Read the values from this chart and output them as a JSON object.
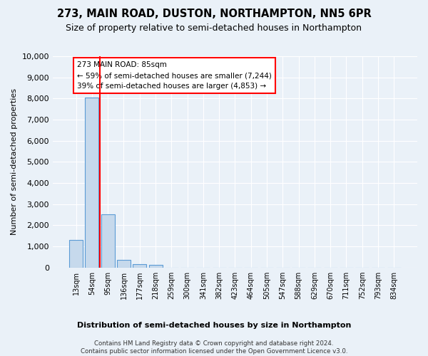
{
  "title": "273, MAIN ROAD, DUSTON, NORTHAMPTON, NN5 6PR",
  "subtitle": "Size of property relative to semi-detached houses in Northampton",
  "xlabel": "Distribution of semi-detached houses by size in Northampton",
  "ylabel": "Number of semi-detached properties",
  "footer": "Contains HM Land Registry data © Crown copyright and database right 2024.\nContains public sector information licensed under the Open Government Licence v3.0.",
  "categories": [
    "13sqm",
    "54sqm",
    "95sqm",
    "136sqm",
    "177sqm",
    "218sqm",
    "259sqm",
    "300sqm",
    "341sqm",
    "382sqm",
    "423sqm",
    "464sqm",
    "505sqm",
    "547sqm",
    "588sqm",
    "629sqm",
    "670sqm",
    "711sqm",
    "752sqm",
    "793sqm",
    "834sqm"
  ],
  "values": [
    1300,
    8050,
    2500,
    370,
    155,
    120,
    0,
    0,
    0,
    0,
    0,
    0,
    0,
    0,
    0,
    0,
    0,
    0,
    0,
    0,
    0
  ],
  "bar_color": "#c6d9ec",
  "bar_edge_color": "#5b9bd5",
  "subject_line_color": "red",
  "annotation_text": "273 MAIN ROAD: 85sqm\n← 59% of semi-detached houses are smaller (7,244)\n39% of semi-detached houses are larger (4,853) →",
  "annotation_box_color": "white",
  "annotation_box_edgecolor": "red",
  "ylim": [
    0,
    10000
  ],
  "yticks": [
    0,
    1000,
    2000,
    3000,
    4000,
    5000,
    6000,
    7000,
    8000,
    9000,
    10000
  ],
  "bg_color": "#eaf1f8",
  "plot_bg_color": "#eaf1f8",
  "grid_color": "white",
  "title_fontsize": 10.5,
  "subtitle_fontsize": 9
}
